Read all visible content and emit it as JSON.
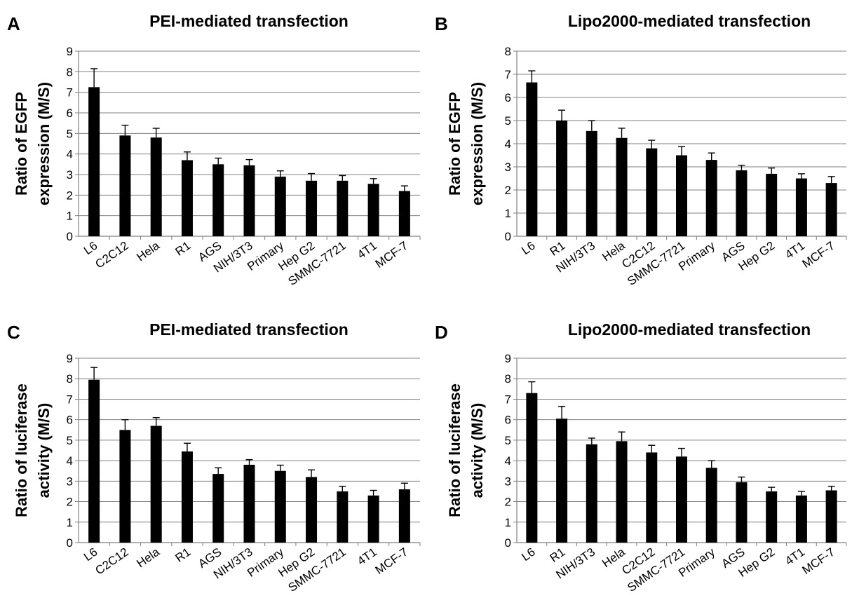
{
  "chart_data": [
    {
      "panel": "A",
      "type": "bar",
      "title": "PEI-mediated transfection",
      "ylabel": "Ratio of EGFP expression (M/S)",
      "ylabel_lines": [
        "Ratio of EGFP",
        "expression (M/S)"
      ],
      "xlabel": "",
      "ylim": [
        0,
        9
      ],
      "yticks": [
        0,
        1,
        2,
        3,
        4,
        5,
        6,
        7,
        8,
        9
      ],
      "grid": true,
      "categories": [
        "L6",
        "C2C12",
        "Hela",
        "R1",
        "AGS",
        "NIH/3T3",
        "Primary",
        "Hep G2",
        "SMMC-7721",
        "4T1",
        "MCF-7"
      ],
      "values": [
        7.25,
        4.9,
        4.8,
        3.7,
        3.5,
        3.45,
        2.9,
        2.7,
        2.7,
        2.55,
        2.2
      ],
      "errors": [
        0.9,
        0.5,
        0.45,
        0.4,
        0.3,
        0.28,
        0.28,
        0.35,
        0.25,
        0.25,
        0.25
      ]
    },
    {
      "panel": "B",
      "type": "bar",
      "title": "Lipo2000-mediated transfection",
      "ylabel": "Ratio of EGFP expression (M/S)",
      "ylabel_lines": [
        "Ratio of EGFP",
        "expression (M/S)"
      ],
      "xlabel": "",
      "ylim": [
        0,
        8
      ],
      "yticks": [
        0,
        1,
        2,
        3,
        4,
        5,
        6,
        7,
        8
      ],
      "grid": true,
      "categories": [
        "L6",
        "R1",
        "NIH/3T3",
        "Hela",
        "C2C12",
        "SMMC-7721",
        "Primary",
        "AGS",
        "Hep G2",
        "4T1",
        "MCF-7"
      ],
      "values": [
        6.65,
        5.0,
        4.55,
        4.25,
        3.8,
        3.5,
        3.3,
        2.85,
        2.7,
        2.5,
        2.3
      ],
      "errors": [
        0.5,
        0.45,
        0.45,
        0.42,
        0.35,
        0.38,
        0.3,
        0.22,
        0.25,
        0.2,
        0.28
      ]
    },
    {
      "panel": "C",
      "type": "bar",
      "title": "PEI-mediated transfection",
      "ylabel": "Ratio of luciferase activity (M/S)",
      "ylabel_lines": [
        "Ratio of luciferase",
        "activity (M/S)"
      ],
      "xlabel": "",
      "ylim": [
        0,
        9
      ],
      "yticks": [
        0,
        1,
        2,
        3,
        4,
        5,
        6,
        7,
        8,
        9
      ],
      "grid": true,
      "categories": [
        "L6",
        "C2C12",
        "Hela",
        "R1",
        "AGS",
        "NIH/3T3",
        "Primary",
        "Hep G2",
        "SMMC-7721",
        "4T1",
        "MCF-7"
      ],
      "values": [
        7.95,
        5.5,
        5.7,
        4.45,
        3.35,
        3.8,
        3.5,
        3.2,
        2.5,
        2.3,
        2.6
      ],
      "errors": [
        0.6,
        0.5,
        0.4,
        0.4,
        0.3,
        0.25,
        0.28,
        0.35,
        0.25,
        0.25,
        0.3
      ]
    },
    {
      "panel": "D",
      "type": "bar",
      "title": "Lipo2000-mediated transfection",
      "ylabel": "Ratio of luciferase activity (M/S)",
      "ylabel_lines": [
        "Ratio of luciferase",
        "activity (M/S)"
      ],
      "xlabel": "",
      "ylim": [
        0,
        9
      ],
      "yticks": [
        0,
        1,
        2,
        3,
        4,
        5,
        6,
        7,
        8,
        9
      ],
      "grid": true,
      "categories": [
        "L6",
        "R1",
        "NIH/3T3",
        "Hela",
        "C2C12",
        "SMMC-7721",
        "Primary",
        "AGS",
        "Hep G2",
        "4T1",
        "MCF-7"
      ],
      "values": [
        7.3,
        6.05,
        4.8,
        4.95,
        4.4,
        4.2,
        3.65,
        2.95,
        2.5,
        2.3,
        2.55
      ],
      "errors": [
        0.55,
        0.6,
        0.3,
        0.45,
        0.35,
        0.4,
        0.35,
        0.25,
        0.2,
        0.2,
        0.2
      ]
    }
  ],
  "colors": {
    "bar": "#000000",
    "grid": "#808080",
    "axis": "#808080",
    "text": "#000000"
  }
}
